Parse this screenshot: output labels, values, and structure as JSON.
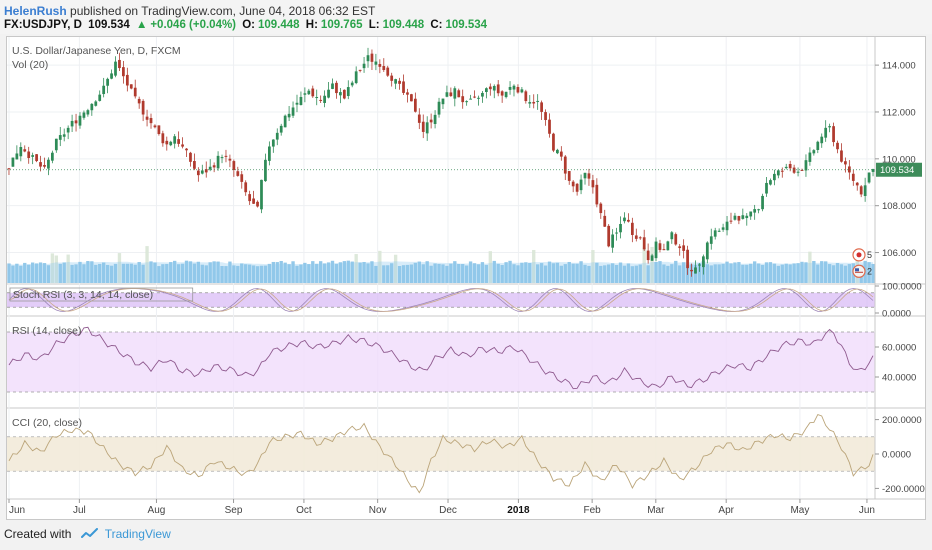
{
  "header": {
    "author": "HelenRush",
    "published": "published on TradingView.com, June 04, 2018 06:32 EST",
    "symbol": "FX:USDJPY, D",
    "last": "109.534",
    "change": "+0.046 (+0.04%)",
    "open_label": "O:",
    "open": "109.448",
    "high_label": "H:",
    "high": "109.765",
    "low_label": "L:",
    "low": "109.448",
    "close_label": "C:",
    "close": "109.534"
  },
  "footer": {
    "created_with": "Created with",
    "brand": "TradingView"
  },
  "colors": {
    "up": "#2e8b57",
    "down": "#b03a2e",
    "volume": "#6fb6e2",
    "volume_ma": "#8ec9ee",
    "stoch_band": "#d7b8f5",
    "rsi_band": "#f0dcfb",
    "cci_band": "#f2ead9",
    "rsi_line": "#8f5a8f",
    "cci_line": "#bba57a",
    "last_price": "#3d8c5a"
  },
  "chart_data": {
    "type": "candlestick",
    "title": "U.S. Dollar/Japanese Yen, D, FXCM",
    "volume_label": "Vol (20)",
    "x_ticks": [
      "Jun",
      "Jul",
      "Aug",
      "Sep",
      "Oct",
      "Nov",
      "Dec",
      "2018",
      "Feb",
      "Mar",
      "Apr",
      "May",
      "Jun"
    ],
    "y_ticks": [
      "114.000",
      "112.000",
      "110.000",
      "108.000",
      "106.000"
    ],
    "ylim": [
      104.7,
      115.2
    ],
    "last_price": 109.534,
    "last_price_label": "109.534",
    "event_markers": [
      "5",
      "2"
    ],
    "price_path": [
      [
        0,
        109.7
      ],
      [
        3,
        110.6
      ],
      [
        6,
        110.0
      ],
      [
        9,
        109.5
      ],
      [
        12,
        110.7
      ],
      [
        16,
        111.5
      ],
      [
        20,
        112.2
      ],
      [
        24,
        113.0
      ],
      [
        27,
        114.1
      ],
      [
        29,
        113.5
      ],
      [
        32,
        112.5
      ],
      [
        35,
        111.8
      ],
      [
        38,
        111.0
      ],
      [
        40,
        110.6
      ],
      [
        42,
        111.0
      ],
      [
        45,
        110.2
      ],
      [
        48,
        109.3
      ],
      [
        51,
        109.6
      ],
      [
        54,
        110.2
      ],
      [
        56,
        109.8
      ],
      [
        58,
        109.2
      ],
      [
        61,
        108.2
      ],
      [
        63,
        107.8
      ],
      [
        64,
        109.0
      ],
      [
        66,
        110.6
      ],
      [
        68,
        111.2
      ],
      [
        70,
        111.8
      ],
      [
        73,
        112.4
      ],
      [
        76,
        112.9
      ],
      [
        79,
        112.5
      ],
      [
        82,
        113.1
      ],
      [
        85,
        112.6
      ],
      [
        88,
        113.6
      ],
      [
        91,
        114.3
      ],
      [
        94,
        114.1
      ],
      [
        97,
        113.5
      ],
      [
        100,
        112.8
      ],
      [
        103,
        112.1
      ],
      [
        105,
        111.2
      ],
      [
        107,
        111.7
      ],
      [
        110,
        112.6
      ],
      [
        113,
        112.9
      ],
      [
        116,
        112.3
      ],
      [
        119,
        112.6
      ],
      [
        122,
        113.1
      ],
      [
        125,
        112.7
      ],
      [
        128,
        113.2
      ],
      [
        131,
        112.6
      ],
      [
        134,
        112.4
      ],
      [
        136,
        111.5
      ],
      [
        138,
        110.5
      ],
      [
        140,
        110.0
      ],
      [
        142,
        109.0
      ],
      [
        144,
        108.6
      ],
      [
        146,
        109.3
      ],
      [
        148,
        108.8
      ],
      [
        150,
        107.6
      ],
      [
        152,
        106.4
      ],
      [
        154,
        106.8
      ],
      [
        156,
        107.6
      ],
      [
        158,
        106.9
      ],
      [
        160,
        106.6
      ],
      [
        162,
        105.8
      ],
      [
        164,
        106.3
      ],
      [
        166,
        106.1
      ],
      [
        168,
        106.7
      ],
      [
        170,
        106.3
      ],
      [
        172,
        105.5
      ],
      [
        174,
        105.2
      ],
      [
        176,
        106.0
      ],
      [
        178,
        106.8
      ],
      [
        181,
        107.0
      ],
      [
        184,
        107.6
      ],
      [
        187,
        107.4
      ],
      [
        190,
        108.0
      ],
      [
        192,
        109.0
      ],
      [
        194,
        109.3
      ],
      [
        196,
        109.5
      ],
      [
        198,
        109.6
      ],
      [
        200,
        109.5
      ],
      [
        202,
        109.8
      ],
      [
        204,
        110.4
      ],
      [
        206,
        111.0
      ],
      [
        208,
        111.3
      ],
      [
        210,
        110.4
      ],
      [
        212,
        109.6
      ],
      [
        214,
        109.1
      ],
      [
        216,
        108.6
      ],
      [
        218,
        109.4
      ],
      [
        219,
        109.534
      ]
    ],
    "stoch_rsi": {
      "label": "Stoch RSI (3, 3, 14, 14, close)",
      "y_ticks": [
        "100.0000",
        "0.0000"
      ],
      "band": [
        20,
        80
      ]
    },
    "rsi": {
      "label": "RSI (14, close)",
      "y_ticks": [
        "60.0000",
        "40.0000"
      ],
      "band": [
        30,
        70
      ],
      "path": [
        [
          0,
          48
        ],
        [
          4,
          55
        ],
        [
          8,
          52
        ],
        [
          12,
          62
        ],
        [
          16,
          68
        ],
        [
          20,
          72
        ],
        [
          24,
          64
        ],
        [
          28,
          57
        ],
        [
          32,
          50
        ],
        [
          36,
          46
        ],
        [
          40,
          52
        ],
        [
          44,
          44
        ],
        [
          48,
          42
        ],
        [
          52,
          47
        ],
        [
          56,
          45
        ],
        [
          60,
          41
        ],
        [
          63,
          44
        ],
        [
          66,
          56
        ],
        [
          70,
          60
        ],
        [
          74,
          63
        ],
        [
          78,
          60
        ],
        [
          82,
          62
        ],
        [
          86,
          66
        ],
        [
          90,
          64
        ],
        [
          94,
          60
        ],
        [
          98,
          54
        ],
        [
          102,
          47
        ],
        [
          105,
          44
        ],
        [
          108,
          52
        ],
        [
          112,
          58
        ],
        [
          116,
          54
        ],
        [
          120,
          59
        ],
        [
          124,
          57
        ],
        [
          128,
          60
        ],
        [
          132,
          52
        ],
        [
          136,
          44
        ],
        [
          140,
          38
        ],
        [
          144,
          33
        ],
        [
          148,
          40
        ],
        [
          152,
          36
        ],
        [
          156,
          44
        ],
        [
          160,
          37
        ],
        [
          164,
          33
        ],
        [
          168,
          40
        ],
        [
          172,
          34
        ],
        [
          176,
          38
        ],
        [
          180,
          44
        ],
        [
          184,
          48
        ],
        [
          188,
          46
        ],
        [
          192,
          54
        ],
        [
          196,
          61
        ],
        [
          200,
          64
        ],
        [
          204,
          62
        ],
        [
          207,
          69
        ],
        [
          209,
          70
        ],
        [
          211,
          60
        ],
        [
          213,
          50
        ],
        [
          215,
          43
        ],
        [
          217,
          47
        ],
        [
          219,
          52
        ]
      ]
    },
    "cci": {
      "label": "CCI (20, close)",
      "y_ticks": [
        "200.0000",
        "0.0000",
        "-200.0000"
      ],
      "band": [
        -100,
        100
      ],
      "path": [
        [
          0,
          -40
        ],
        [
          4,
          60
        ],
        [
          8,
          10
        ],
        [
          12,
          110
        ],
        [
          16,
          140
        ],
        [
          20,
          130
        ],
        [
          24,
          30
        ],
        [
          28,
          -60
        ],
        [
          32,
          -110
        ],
        [
          36,
          -70
        ],
        [
          40,
          40
        ],
        [
          44,
          -90
        ],
        [
          48,
          -130
        ],
        [
          52,
          -40
        ],
        [
          56,
          -80
        ],
        [
          60,
          -120
        ],
        [
          63,
          -60
        ],
        [
          66,
          70
        ],
        [
          70,
          100
        ],
        [
          74,
          120
        ],
        [
          78,
          60
        ],
        [
          82,
          90
        ],
        [
          86,
          140
        ],
        [
          90,
          160
        ],
        [
          94,
          40
        ],
        [
          98,
          -60
        ],
        [
          101,
          -150
        ],
        [
          104,
          -230
        ],
        [
          107,
          -40
        ],
        [
          110,
          90
        ],
        [
          114,
          60
        ],
        [
          118,
          30
        ],
        [
          122,
          80
        ],
        [
          126,
          40
        ],
        [
          130,
          90
        ],
        [
          134,
          -40
        ],
        [
          138,
          -140
        ],
        [
          142,
          -180
        ],
        [
          146,
          -60
        ],
        [
          150,
          -160
        ],
        [
          154,
          -60
        ],
        [
          158,
          -180
        ],
        [
          162,
          -120
        ],
        [
          166,
          -40
        ],
        [
          170,
          -150
        ],
        [
          174,
          -80
        ],
        [
          178,
          20
        ],
        [
          182,
          60
        ],
        [
          186,
          20
        ],
        [
          190,
          70
        ],
        [
          194,
          110
        ],
        [
          198,
          90
        ],
        [
          202,
          140
        ],
        [
          205,
          230
        ],
        [
          208,
          150
        ],
        [
          211,
          40
        ],
        [
          214,
          -110
        ],
        [
          216,
          -90
        ],
        [
          218,
          -60
        ],
        [
          219,
          -20
        ]
      ]
    }
  }
}
